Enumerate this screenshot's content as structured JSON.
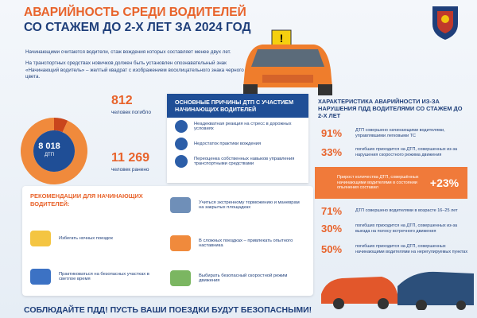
{
  "header": {
    "title_line1": "АВАРИЙНОСТЬ СРЕДИ ВОДИТЕЛЕЙ",
    "title_line2": "СО СТАЖЕМ ДО 2-Х ЛЕТ ЗА 2024 ГОД"
  },
  "intro": [
    "Начинающими считаются водители, стаж вождения которых составляет менее двух лет.",
    "На транспортных средствах новичков должен быть установлен опознавательный знак «Начинающий водитель» – желтый квадрат с изображением восклицательного знака черного цвета."
  ],
  "stats": {
    "total": {
      "value": 8018,
      "label": "8 018"
    },
    "total_caption": "ДТП",
    "killed": {
      "value": 812,
      "label": "812"
    },
    "killed_caption": "человек погибло",
    "injured": {
      "value": 11269,
      "label": "11 269"
    },
    "injured_caption": "человек ранено"
  },
  "causes": {
    "title": "ОСНОВНЫЕ ПРИЧИНЫ ДТП С УЧАСТИЕМ НАЧИНАЮЩИХ ВОДИТЕЛЕЙ",
    "items": [
      "Неадекватная реакция на стресс в дорожных условиях",
      "Недостаток практики вождения",
      "Переоценка собственных навыков управления транспортными средствами"
    ]
  },
  "characteristics": {
    "title": "ХАРАКТЕРИСТИКА АВАРИЙНОСТИ ИЗ-ЗА НАРУШЕНИЯ ПДД ВОДИТЕЛЯМИ СО СТАЖЕМ ДО 2-Х ЛЕТ",
    "items": [
      {
        "value": "91%",
        "text": "ДТП совершено начинающими водителями, управлявшими легковыми ТС"
      },
      {
        "value": "33%",
        "text": "погибших приходится на ДТП, совершенных из-за нарушения скоростного режима движения"
      }
    ],
    "highlight": {
      "text": "Прирост количества ДТП, совершённых начинающими водителями в состоянии опьянения составил",
      "value": "+23%"
    },
    "items2": [
      {
        "value": "71%",
        "text": "ДТП совершено водителями в возрасте 16–25 лет"
      },
      {
        "value": "30%",
        "text": "погибших приходится на ДТП, совершенных из-за выезда на полосу встречного движения"
      },
      {
        "value": "50%",
        "text": "погибших приходится на ДТП, совершенных начинающими водителями на нерегулируемых пунктах"
      }
    ]
  },
  "recommendations": {
    "title": "РЕКОМЕНДАЦИИ ДЛЯ НАЧИНАЮЩИХ ВОДИТЕЛЕЙ:",
    "items": [
      "Избегать ночных поездок",
      "Практиковаться на безопасных участках в светлое время",
      "Учиться экстренному торможению и маневрам на закрытых площадках",
      "В сложных поездках – привлекать опытного наставника",
      "Выбирать безопасный скоростной режим движения"
    ]
  },
  "footer": "СОБЛЮДАЙТЕ ПДД! ПУСТЬ ВАШИ ПОЕЗДКИ БУДУТ БЕЗОПАСНЫМИ!"
}
